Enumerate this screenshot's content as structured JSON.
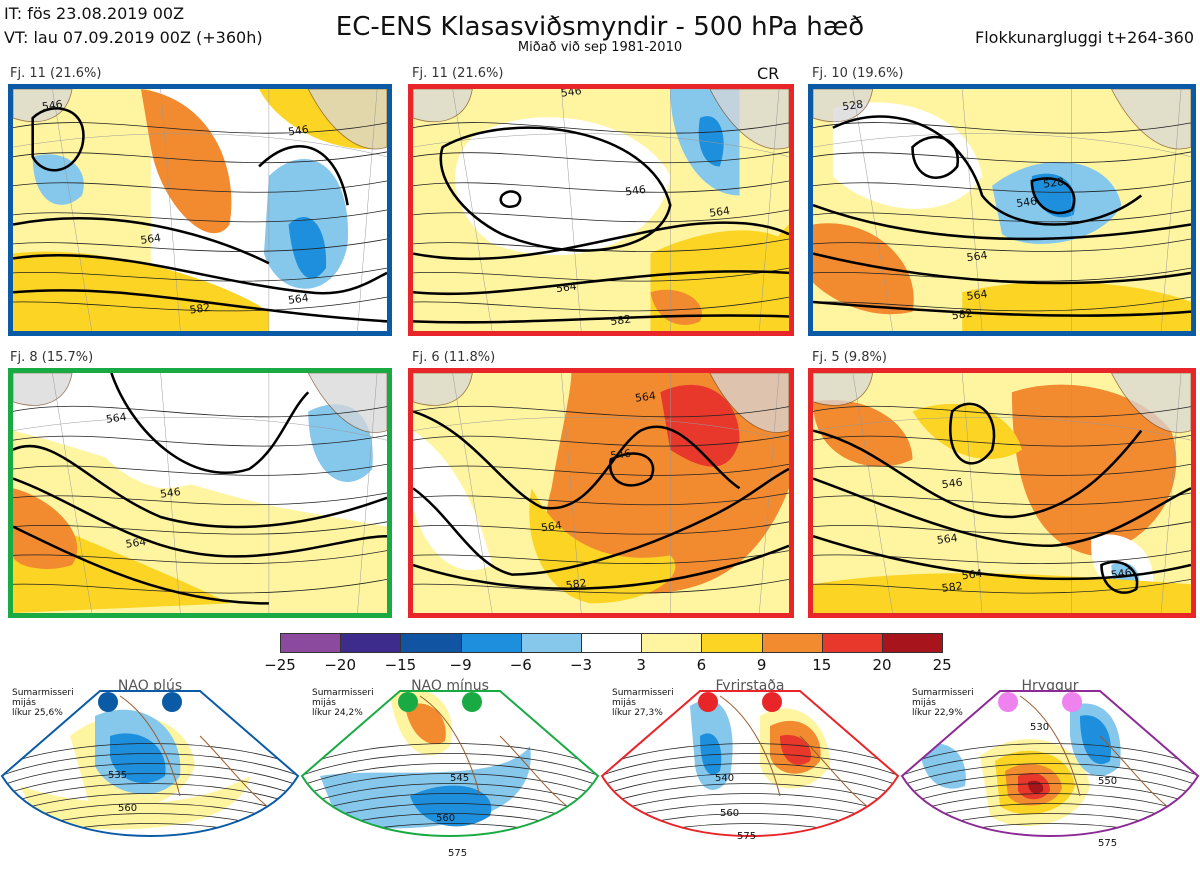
{
  "header": {
    "it_line": "IT: fös 23.08.2019 00Z",
    "vt_line": "VT: lau 07.09.2019 00Z  (+360h)",
    "title": "EC-ENS Klasasviðsmyndir - 500 hPa hæð",
    "subtitle": "Miðað við sep 1981-2010",
    "window": "Flokkunargluggi t+264-360"
  },
  "panels": [
    {
      "label": "Fj. 11 (21.6%)",
      "border": "#0b5aa6",
      "contours": [
        "546",
        "546",
        "564",
        "564",
        "582"
      ]
    },
    {
      "label": "Fj. 11 (21.6%)",
      "border": "#e8262a",
      "tag": "CR",
      "contours": [
        "546",
        "546",
        "564",
        "564",
        "582"
      ]
    },
    {
      "label": "Fj. 10 (19.6%)",
      "border": "#0b5aa6",
      "contours": [
        "528",
        "528",
        "546",
        "564",
        "564",
        "582"
      ]
    },
    {
      "label": "Fj. 8 (15.7%)",
      "border": "#1aaa44",
      "contours": [
        "546",
        "564",
        "564"
      ]
    },
    {
      "label": "Fj. 6 (11.8%)",
      "border": "#e8262a",
      "contours": [
        "546",
        "564",
        "564",
        "582"
      ]
    },
    {
      "label": "Fj. 5 (9.8%)",
      "border": "#e8262a",
      "contours": [
        "546",
        "564",
        "564",
        "582",
        "546"
      ]
    }
  ],
  "colorbar": {
    "ticks": [
      "−25",
      "−20",
      "−15",
      "−9",
      "−6",
      "−3",
      "3",
      "6",
      "9",
      "15",
      "20",
      "25"
    ],
    "colors": [
      "#8c4a9e",
      "#3d2c8c",
      "#1054a2",
      "#1e8fdc",
      "#86c7ec",
      "#ffffff",
      "#fff5a0",
      "#fcd423",
      "#f28a30",
      "#e8372b",
      "#a8141c"
    ]
  },
  "regimes": [
    {
      "title": "NAO plús",
      "note": [
        "Sumarmisseri",
        "mijás",
        "líkur 25,6%"
      ],
      "color": "#0b5aa6",
      "dot": "#0b5aa6",
      "contours": [
        "535",
        "560"
      ]
    },
    {
      "title": "NAO mínus",
      "note": [
        "Sumarmisseri",
        "mijás",
        "líkur 24,2%"
      ],
      "color": "#1aaa44",
      "dot": "#1aaa44",
      "contours": [
        "545",
        "560",
        "575"
      ]
    },
    {
      "title": "Fyrirstaða",
      "note": [
        "Sumarmisseri",
        "mijás",
        "líkur 27,3%"
      ],
      "color": "#e8262a",
      "dot": "#e8262a",
      "contours": [
        "540",
        "560",
        "575"
      ]
    },
    {
      "title": "Hryggur",
      "note": [
        "Sumarmisseri",
        "mijás",
        "líkur 22,9%"
      ],
      "color": "#8c2a96",
      "dot": "#ee82ee",
      "contours": [
        "530",
        "550",
        "575"
      ]
    }
  ]
}
